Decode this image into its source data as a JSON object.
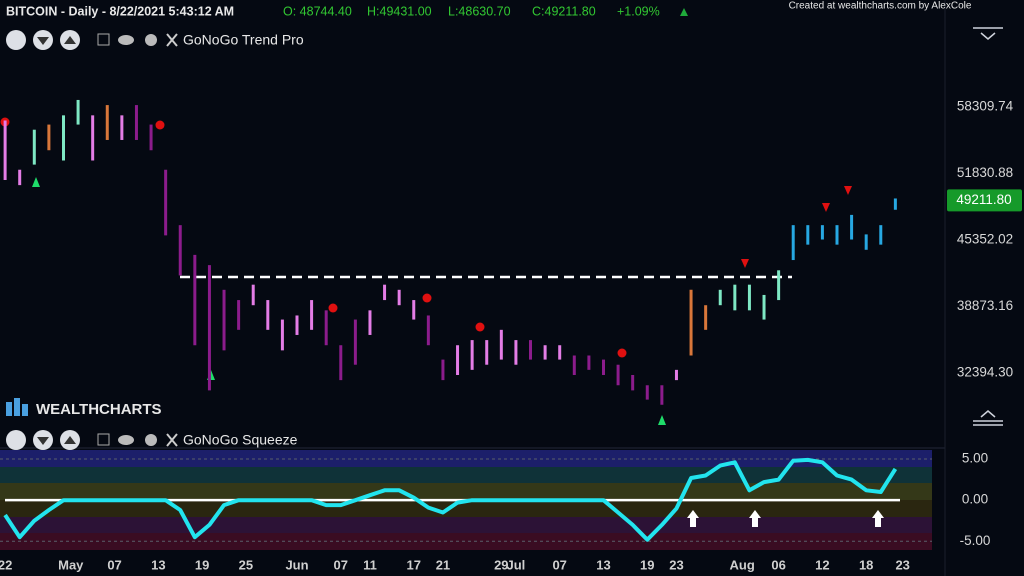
{
  "header": {
    "title": "BITCOIN - Daily - 8/22/2021 5:43:12 AM",
    "open": "O: 48744.40",
    "high": "H:49431.00",
    "low": "L:48630.70",
    "close": "C:49211.80",
    "change": "+1.09%",
    "credit": "Created at wealthcharts.com by AlexCole",
    "logo": "WEALTHCHARTS"
  },
  "chart_data": [
    {
      "type": "ohlc",
      "title": "GoNoGo Trend Pro",
      "x": [
        0,
        2,
        4,
        6,
        8,
        10,
        12,
        14,
        16,
        18,
        20,
        22,
        24,
        26,
        28,
        30,
        32,
        34,
        36,
        38,
        40,
        42,
        44,
        46,
        48,
        50,
        52,
        54,
        56,
        58,
        60,
        62,
        64,
        66,
        68,
        70,
        72,
        74,
        76,
        78,
        80,
        82,
        84,
        86,
        88,
        90,
        92,
        94,
        96,
        98,
        100,
        102,
        104,
        106,
        108,
        110,
        112,
        114,
        116,
        118,
        120,
        122
      ],
      "high": [
        57000,
        52200,
        56100,
        56600,
        57500,
        59000,
        57500,
        58500,
        57500,
        58500,
        56600,
        52200,
        46800,
        43900,
        42900,
        40500,
        39500,
        41000,
        39500,
        37600,
        38000,
        39500,
        38500,
        35100,
        37600,
        38500,
        41000,
        40500,
        39500,
        38000,
        33700,
        35100,
        35600,
        35600,
        36600,
        35600,
        35600,
        35100,
        35100,
        34100,
        34100,
        33700,
        33200,
        32200,
        31200,
        31200,
        32700,
        40500,
        39000,
        40500,
        41000,
        41000,
        40000,
        42400,
        46800,
        46800,
        46800,
        46800,
        47800,
        45900,
        46800,
        49400
      ],
      "low": [
        51200,
        50700,
        52700,
        54100,
        53100,
        56600,
        53100,
        55100,
        55100,
        55100,
        54100,
        45800,
        41900,
        35100,
        30700,
        34600,
        36600,
        39000,
        36600,
        34600,
        36100,
        36600,
        35100,
        31700,
        33200,
        36100,
        39500,
        39000,
        37600,
        35100,
        31700,
        32200,
        32700,
        33200,
        33700,
        33200,
        33700,
        33700,
        33700,
        32200,
        32700,
        32200,
        31200,
        30700,
        29800,
        29300,
        31700,
        34100,
        36600,
        39000,
        38500,
        38500,
        37600,
        39500,
        43400,
        44900,
        45400,
        44900,
        45400,
        44400,
        44900,
        48300
      ],
      "colors": [
        "#e47de6",
        "#e47de6",
        "#7ee8c4",
        "#d9773a",
        "#7ee8c4",
        "#7ee8c4",
        "#e47de6",
        "#d9773a",
        "#e47de6",
        "#8c1c8c",
        "#8c1c8c",
        "#8c1c8c",
        "#8c1c8c",
        "#8c1c8c",
        "#8c1c8c",
        "#8c1c8c",
        "#8c1c8c",
        "#e47de6",
        "#e47de6",
        "#e47de6",
        "#e47de6",
        "#e47de6",
        "#8c1c8c",
        "#8c1c8c",
        "#8c1c8c",
        "#e47de6",
        "#e47de6",
        "#e47de6",
        "#e47de6",
        "#8c1c8c",
        "#8c1c8c",
        "#e47de6",
        "#e47de6",
        "#e47de6",
        "#e47de6",
        "#e47de6",
        "#8c1c8c",
        "#e47de6",
        "#e47de6",
        "#8c1c8c",
        "#8c1c8c",
        "#8c1c8c",
        "#8c1c8c",
        "#8c1c8c",
        "#8c1c8c",
        "#8c1c8c",
        "#e47de6",
        "#d9773a",
        "#d9773a",
        "#7ee8c4",
        "#7ee8c4",
        "#7ee8c4",
        "#7ee8c4",
        "#7ee8c4",
        "#27a8e2",
        "#27a8e2",
        "#27a8e2",
        "#27a8e2",
        "#27a8e2",
        "#27a8e2",
        "#27a8e2",
        "#27a8e2"
      ],
      "xlim": [
        -0.7,
        128.8
      ],
      "ylim": [
        26840,
        66790
      ],
      "yticks": [
        58309.74,
        51830.88,
        45352.02,
        38873.16,
        {
          "value": 32394.3,
          "label": "32394.30"
        }
      ],
      "last_value": {
        "value": 49211.8,
        "label": "49211.80"
      }
    },
    {
      "type": "line",
      "title": "GoNoGo Squeeze",
      "color": "#22e4ee",
      "x": [
        0,
        2,
        4,
        6,
        8,
        10,
        12,
        14,
        16,
        18,
        20,
        22,
        24,
        26,
        28,
        30,
        32,
        34,
        36,
        38,
        40,
        42,
        44,
        46,
        48,
        50,
        52,
        54,
        56,
        58,
        60,
        62,
        64,
        66,
        68,
        70,
        72,
        74,
        76,
        78,
        80,
        82,
        84,
        86,
        88,
        90,
        92,
        94,
        96,
        98,
        100,
        102,
        104,
        106,
        108,
        110,
        112,
        114,
        116,
        118,
        120,
        122
      ],
      "values": [
        -1.8,
        -4.5,
        -2.5,
        -1.2,
        0,
        0,
        0,
        0,
        0,
        0,
        0,
        0,
        -1.2,
        -4.5,
        -3,
        -0.6,
        0,
        0,
        0,
        0,
        0,
        0,
        -0.6,
        -0.6,
        0,
        0.6,
        1.2,
        1.2,
        0.3,
        -0.9,
        -1.5,
        -0.3,
        0,
        0,
        0,
        0,
        0,
        0,
        0,
        0,
        0,
        0,
        -1.5,
        -3,
        -4.8,
        -3,
        -1,
        2.7,
        3,
        4.2,
        4.6,
        1.2,
        2.2,
        2.5,
        4.8,
        4.9,
        4.6,
        3,
        2.5,
        1.2,
        1,
        3.8
      ],
      "xlim": [
        -0.7,
        128.8
      ],
      "ylim": [
        -6.3,
        6.1
      ],
      "yticks": [
        {
          "value": 5,
          "label": "5.00"
        },
        {
          "value": 0,
          "label": "0.00"
        },
        {
          "value": -5,
          "label": "-5.00"
        }
      ],
      "xticks": [
        {
          "value": 0,
          "label": "22"
        },
        {
          "value": 9,
          "label": "May"
        },
        {
          "value": 15,
          "label": "07"
        },
        {
          "value": 21,
          "label": "13"
        },
        {
          "value": 27,
          "label": "19"
        },
        {
          "value": 33,
          "label": "25"
        },
        {
          "value": 40,
          "label": "Jun"
        },
        {
          "value": 46,
          "label": "07"
        },
        {
          "value": 50,
          "label": "11"
        },
        {
          "value": 56,
          "label": "17"
        },
        {
          "value": 60,
          "label": "21"
        },
        {
          "value": 68,
          "label": "29"
        },
        {
          "value": 70,
          "label": "Jul"
        },
        {
          "value": 76,
          "label": "07"
        },
        {
          "value": 82,
          "label": "13"
        },
        {
          "value": 88,
          "label": "19"
        },
        {
          "value": 92,
          "label": "23"
        },
        {
          "value": 101,
          "label": "Aug"
        },
        {
          "value": 106,
          "label": "06"
        },
        {
          "value": 112,
          "label": "12"
        },
        {
          "value": 118,
          "label": "18"
        },
        {
          "value": 123,
          "label": "23"
        }
      ]
    }
  ]
}
